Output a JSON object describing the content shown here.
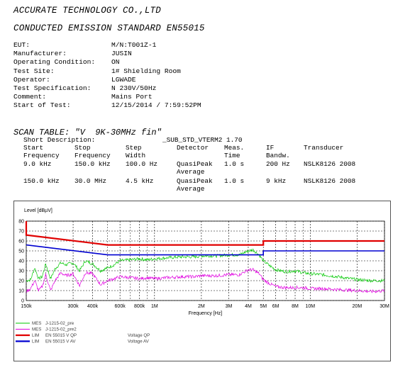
{
  "header": {
    "company": "ACCURATE TECHNOLOGY CO.,LTD",
    "standard": "CONDUCTED EMISSION STANDARD EN55015"
  },
  "info": [
    {
      "label": "EUT:",
      "value": "M/N:T001Z-1"
    },
    {
      "label": "Manufacturer:",
      "value": "JUSIN"
    },
    {
      "label": "Operating Condition:",
      "value": "ON"
    },
    {
      "label": "Test Site:",
      "value": "1# Shielding Room"
    },
    {
      "label": "Operator:",
      "value": "LGWADE"
    },
    {
      "label": "Test Specification:",
      "value": "N 230V/50Hz"
    },
    {
      "label": "Comment:",
      "value": "Mains Port"
    },
    {
      "label": "Start of Test:",
      "value": "12/15/2014 / 7:59:52PM"
    }
  ],
  "scan_table": {
    "title": "SCAN TABLE: \"V  9K-30MHz fin\"",
    "short_description_label": "Short Description:",
    "short_description_value": "_SUB_STD_VTERM2 1.70",
    "headers": {
      "start": [
        "Start",
        "Frequency"
      ],
      "stop": [
        "Stop",
        "Frequency"
      ],
      "step": [
        "Step",
        "Width"
      ],
      "detector": "Detector",
      "meas": [
        "Meas.",
        "Time"
      ],
      "if": [
        "IF",
        "Bandw."
      ],
      "transducer": "Transducer"
    },
    "rows": [
      {
        "start": "9.0 kHz",
        "stop": "150.0 kHz",
        "step": "100.0 Hz",
        "detector": [
          "QuasiPeak",
          "Average"
        ],
        "meas": "1.0 s",
        "if": "200 Hz",
        "transducer": "NSLK8126 2008"
      },
      {
        "start": "150.0 kHz",
        "stop": "30.0 MHz",
        "step": "4.5 kHz",
        "detector": [
          "QuasiPeak",
          "Average"
        ],
        "meas": "1.0 s",
        "if": "9 kHz",
        "transducer": "NSLK8126 2008"
      }
    ]
  },
  "chart_data": {
    "type": "line",
    "ylabel": "Level [dBµV]",
    "xlabel": "Frequency [Hz]",
    "xscale": "log",
    "xlim": [
      150000,
      30000000
    ],
    "ylim": [
      0,
      80
    ],
    "yticks": [
      0,
      10,
      20,
      30,
      40,
      50,
      60,
      70,
      80
    ],
    "xticks": [
      {
        "value": 150000,
        "label": "150k"
      },
      {
        "value": 300000,
        "label": "300k"
      },
      {
        "value": 400000,
        "label": "400k"
      },
      {
        "value": 600000,
        "label": "600k"
      },
      {
        "value": 800000,
        "label": "800k"
      },
      {
        "value": 1000000,
        "label": "1M"
      },
      {
        "value": 2000000,
        "label": "2M"
      },
      {
        "value": 3000000,
        "label": "3M"
      },
      {
        "value": 4000000,
        "label": "4M"
      },
      {
        "value": 5000000,
        "label": "5M"
      },
      {
        "value": 6000000,
        "label": "6M"
      },
      {
        "value": 8000000,
        "label": "8M"
      },
      {
        "value": 10000000,
        "label": "10M"
      },
      {
        "value": 20000000,
        "label": "20M"
      },
      {
        "value": 30000000,
        "label": "30M"
      }
    ],
    "minor_grid_x": [
      200000,
      500000,
      700000,
      900000,
      7000000,
      9000000
    ],
    "grid": true,
    "series": [
      {
        "name": "J-1215-02_pre",
        "kind": "MES",
        "color": "#00c800",
        "points": [
          [
            150000,
            20
          ],
          [
            160000,
            21
          ],
          [
            170000,
            33
          ],
          [
            180000,
            22
          ],
          [
            190000,
            24
          ],
          [
            200000,
            37
          ],
          [
            215000,
            22
          ],
          [
            230000,
            32
          ],
          [
            250000,
            38
          ],
          [
            270000,
            36
          ],
          [
            300000,
            38
          ],
          [
            330000,
            30
          ],
          [
            360000,
            40
          ],
          [
            400000,
            37
          ],
          [
            450000,
            30
          ],
          [
            500000,
            33
          ],
          [
            550000,
            36
          ],
          [
            600000,
            40
          ],
          [
            700000,
            41
          ],
          [
            800000,
            42
          ],
          [
            900000,
            41
          ],
          [
            1000000,
            42
          ],
          [
            1200000,
            43
          ],
          [
            1500000,
            44
          ],
          [
            1800000,
            44
          ],
          [
            2000000,
            45
          ],
          [
            2500000,
            45
          ],
          [
            3000000,
            46
          ],
          [
            3500000,
            46
          ],
          [
            4000000,
            50
          ],
          [
            4300000,
            51
          ],
          [
            4700000,
            46
          ],
          [
            5000000,
            40
          ],
          [
            5500000,
            35
          ],
          [
            6000000,
            31
          ],
          [
            7000000,
            29
          ],
          [
            8000000,
            30
          ],
          [
            9000000,
            28
          ],
          [
            10000000,
            27
          ],
          [
            12000000,
            26
          ],
          [
            15000000,
            24
          ],
          [
            20000000,
            21
          ],
          [
            25000000,
            20
          ],
          [
            30000000,
            20
          ]
        ]
      },
      {
        "name": "J-1215-02_pre2",
        "kind": "MES",
        "color": "#e000e0",
        "points": [
          [
            150000,
            9
          ],
          [
            160000,
            12
          ],
          [
            170000,
            20
          ],
          [
            180000,
            10
          ],
          [
            190000,
            14
          ],
          [
            200000,
            26
          ],
          [
            215000,
            10
          ],
          [
            230000,
            20
          ],
          [
            250000,
            28
          ],
          [
            270000,
            25
          ],
          [
            300000,
            27
          ],
          [
            330000,
            15
          ],
          [
            360000,
            28
          ],
          [
            400000,
            27
          ],
          [
            450000,
            16
          ],
          [
            500000,
            20
          ],
          [
            550000,
            22
          ],
          [
            600000,
            24
          ],
          [
            700000,
            23
          ],
          [
            800000,
            22
          ],
          [
            900000,
            23
          ],
          [
            1000000,
            22
          ],
          [
            1200000,
            23
          ],
          [
            1500000,
            24
          ],
          [
            1800000,
            24
          ],
          [
            2000000,
            25
          ],
          [
            2500000,
            25
          ],
          [
            3000000,
            26
          ],
          [
            3500000,
            26
          ],
          [
            4000000,
            31
          ],
          [
            4300000,
            31
          ],
          [
            4700000,
            27
          ],
          [
            5000000,
            21
          ],
          [
            5500000,
            17
          ],
          [
            6000000,
            14
          ],
          [
            7000000,
            13
          ],
          [
            8000000,
            13
          ],
          [
            9000000,
            13
          ],
          [
            10000000,
            12
          ],
          [
            12000000,
            12
          ],
          [
            15000000,
            11
          ],
          [
            20000000,
            10
          ],
          [
            25000000,
            9
          ],
          [
            30000000,
            10
          ]
        ]
      },
      {
        "name": "EN 55015 V QP",
        "kind": "LIM",
        "color": "#e00000",
        "width": 2.2,
        "label2": "Voltage QP",
        "points": [
          [
            150000,
            80
          ],
          [
            150000,
            66
          ],
          [
            500000,
            56
          ],
          [
            5000000,
            56
          ],
          [
            5000000,
            60
          ],
          [
            30000000,
            60
          ]
        ]
      },
      {
        "name": "EN 55015 V AV",
        "kind": "LIM",
        "color": "#0000d0",
        "width": 1.6,
        "label2": "Voltage AV",
        "points": [
          [
            150000,
            56
          ],
          [
            500000,
            46
          ],
          [
            5000000,
            46
          ],
          [
            5000000,
            50
          ],
          [
            30000000,
            50
          ]
        ]
      }
    ]
  }
}
